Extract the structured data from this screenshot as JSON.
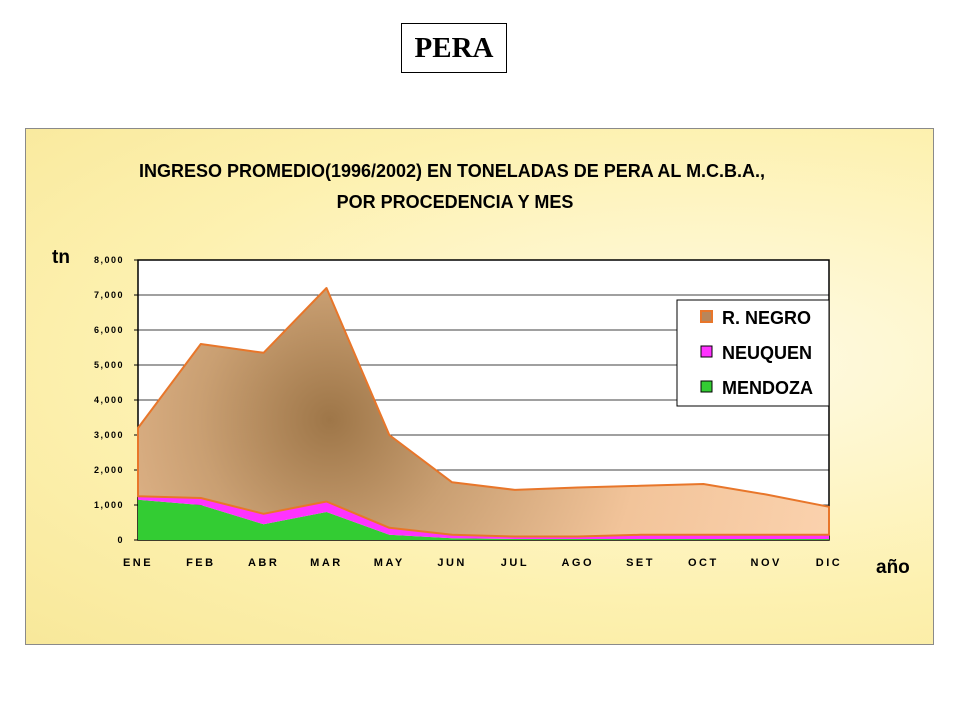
{
  "page_title": "PERA",
  "chart_data": {
    "type": "area",
    "stacked": true,
    "title_line1": "INGRESO PROMEDIO(1996/2002) EN TONELADAS DE PERA AL M.C.B.A.,",
    "title_line2": "POR PROCEDENCIA Y MES",
    "ylabel": "tn",
    "xlabel": "año",
    "categories": [
      "ENE",
      "FEB",
      "ABR",
      "MAR",
      "MAY",
      "JUN",
      "JUL",
      "AGO",
      "SET",
      "OCT",
      "NOV",
      "DIC"
    ],
    "ylim": [
      0,
      8000
    ],
    "yticks": [
      "0",
      "1,000",
      "2,000",
      "3,000",
      "4,000",
      "5,000",
      "6,000",
      "7,000",
      "8,000"
    ],
    "grid": true,
    "legend_position": "top-right",
    "series": [
      {
        "name": "MENDOZA",
        "color": "#33cc33",
        "values": [
          1150,
          1000,
          450,
          800,
          150,
          50,
          30,
          30,
          30,
          30,
          30,
          30
        ]
      },
      {
        "name": "NEUQUEN",
        "color": "#ff33ff",
        "values": [
          100,
          200,
          300,
          300,
          200,
          100,
          70,
          70,
          120,
          120,
          120,
          120
        ]
      },
      {
        "name": "R. NEGRO",
        "color": "#f2c49a",
        "values": [
          1950,
          4400,
          4600,
          6100,
          2650,
          1500,
          1330,
          1400,
          1400,
          1450,
          1150,
          800
        ]
      }
    ]
  }
}
